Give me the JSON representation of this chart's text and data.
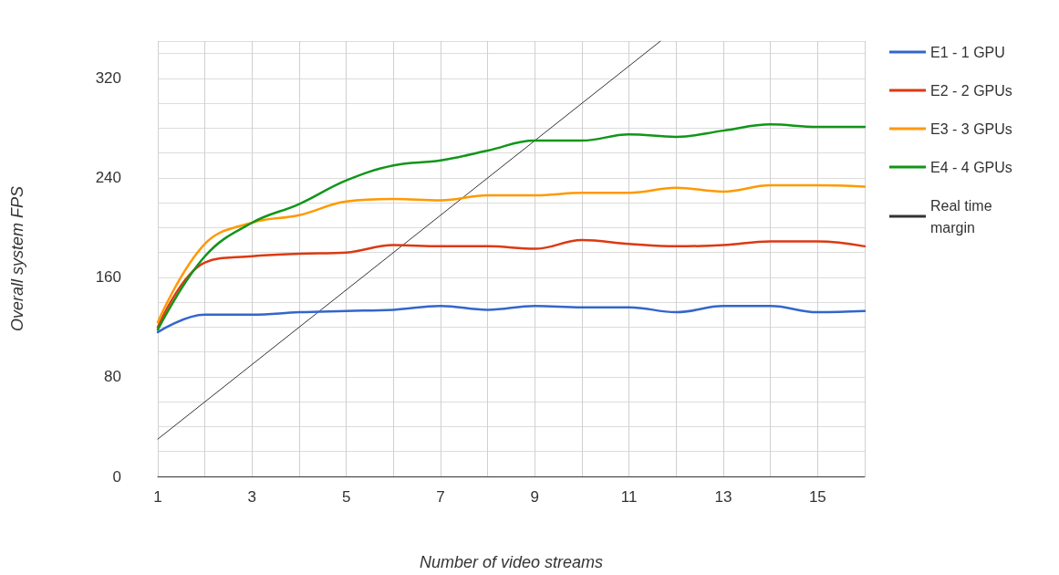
{
  "chart_data": {
    "type": "line",
    "xlabel": "Number of video streams",
    "ylabel": "Overall system FPS",
    "x": [
      1,
      2,
      3,
      4,
      5,
      6,
      7,
      8,
      9,
      10,
      11,
      12,
      13,
      14,
      15,
      16
    ],
    "series": [
      {
        "name": "E1 - 1 GPU",
        "color": "#3366cc",
        "values": [
          116,
          130,
          130,
          132,
          133,
          134,
          137,
          134,
          137,
          136,
          136,
          132,
          137,
          137,
          132,
          133
        ]
      },
      {
        "name": "E2 - 2 GPUs",
        "color": "#dc3912",
        "values": [
          120,
          172,
          177,
          179,
          180,
          186,
          185,
          185,
          183,
          190,
          187,
          185,
          186,
          189,
          189,
          185
        ]
      },
      {
        "name": "E3 - 3 GPUs",
        "color": "#ff9900",
        "values": [
          124,
          187,
          204,
          210,
          221,
          223,
          222,
          226,
          226,
          228,
          228,
          232,
          229,
          234,
          234,
          233
        ]
      },
      {
        "name": "E4 - 4 GPUs",
        "color": "#109618",
        "values": [
          118,
          177,
          204,
          219,
          238,
          250,
          254,
          262,
          270,
          270,
          275,
          273,
          278,
          283,
          281,
          281
        ]
      },
      {
        "name": "Real time margin",
        "color": "#333333",
        "x": [
          1,
          11.667
        ],
        "values": [
          30,
          350
        ]
      }
    ],
    "xlim": [
      1,
      16
    ],
    "xticks": [
      1,
      3,
      5,
      7,
      9,
      11,
      13,
      15
    ],
    "ylim": [
      0,
      350
    ],
    "yticks": [
      0,
      80,
      160,
      240,
      320
    ],
    "grid": true,
    "legend": "top right",
    "marker": "none"
  }
}
